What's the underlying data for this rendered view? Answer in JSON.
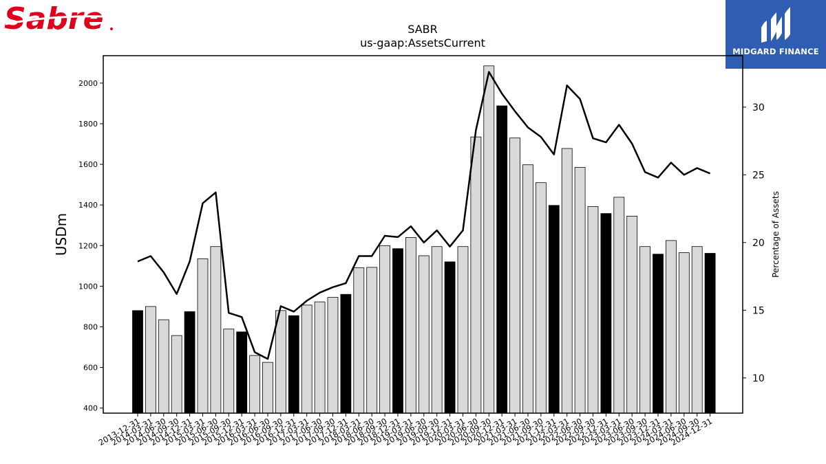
{
  "logos": {
    "left_text": "Sabre",
    "right_text": "MIDGARD FINANCE"
  },
  "colors": {
    "bar_highlight": "#000000",
    "bar_regular": "#d9d9d9",
    "line": "#000000",
    "sabre_red": "#e0001b",
    "midgard_blue": "#2f5db2"
  },
  "chart_data": {
    "type": "bar",
    "title": "SABR",
    "subtitle": "us-gaap:AssetsCurrent",
    "ylabel": "USDm",
    "y2label": "Percentage of Assets",
    "ylim": [
      375,
      2135
    ],
    "y2lim": [
      7.4,
      33.8
    ],
    "yticks": [
      400,
      600,
      800,
      1000,
      1200,
      1400,
      1600,
      1800,
      2000
    ],
    "y2ticks": [
      10,
      15,
      20,
      25,
      30
    ],
    "categories": [
      "2013-12-31",
      "2014-03-31",
      "2014-06-30",
      "2014-09-30",
      "2014-12-31",
      "2015-03-31",
      "2015-06-30",
      "2015-09-30",
      "2015-12-31",
      "2016-03-31",
      "2016-06-30",
      "2016-09-30",
      "2016-12-31",
      "2017-03-31",
      "2017-06-30",
      "2017-09-30",
      "2017-12-31",
      "2018-03-31",
      "2018-06-30",
      "2018-09-30",
      "2018-12-31",
      "2019-03-31",
      "2019-06-30",
      "2019-09-30",
      "2019-12-31",
      "2020-03-31",
      "2020-06-30",
      "2020-09-30",
      "2020-12-31",
      "2021-03-31",
      "2021-06-30",
      "2021-09-30",
      "2021-12-31",
      "2022-03-31",
      "2022-06-30",
      "2022-09-30",
      "2022-12-31",
      "2023-03-31",
      "2023-06-30",
      "2023-09-30",
      "2023-12-31",
      "2024-03-31",
      "2024-06-30",
      "2024-09-30",
      "2024-12-31"
    ],
    "series": [
      {
        "values": [
          880,
          900,
          835,
          757,
          875,
          1135,
          1195,
          789,
          775,
          659,
          625,
          880,
          855,
          907,
          923,
          945,
          960,
          1091,
          1093,
          1200,
          1185,
          1240,
          1150,
          1195,
          1120,
          1195,
          1735,
          2085,
          1888,
          1730,
          1598,
          1510,
          1398,
          1678,
          1585,
          1392,
          1358,
          1438,
          1345,
          1195,
          1158,
          1225,
          1165,
          1195,
          1162
        ],
        "highlight": [
          true,
          false,
          false,
          false,
          true,
          false,
          false,
          false,
          true,
          false,
          false,
          false,
          true,
          false,
          false,
          false,
          true,
          false,
          false,
          false,
          true,
          false,
          false,
          false,
          true,
          false,
          false,
          false,
          true,
          false,
          false,
          false,
          true,
          false,
          false,
          false,
          true,
          false,
          false,
          false,
          true,
          false,
          false,
          false,
          true
        ]
      },
      {
        "axis": "right",
        "values": [
          18.6,
          19.0,
          17.8,
          16.2,
          18.6,
          22.9,
          23.7,
          14.8,
          14.5,
          11.9,
          11.4,
          15.3,
          14.9,
          15.7,
          16.3,
          16.7,
          17.0,
          19.0,
          19.0,
          20.5,
          20.4,
          21.2,
          20.0,
          20.9,
          19.7,
          20.9,
          28.3,
          32.6,
          31.0,
          29.7,
          28.5,
          27.8,
          26.5,
          31.6,
          30.6,
          27.7,
          27.4,
          28.7,
          27.3,
          25.2,
          24.8,
          25.9,
          25.0,
          25.5,
          25.1
        ]
      }
    ]
  }
}
